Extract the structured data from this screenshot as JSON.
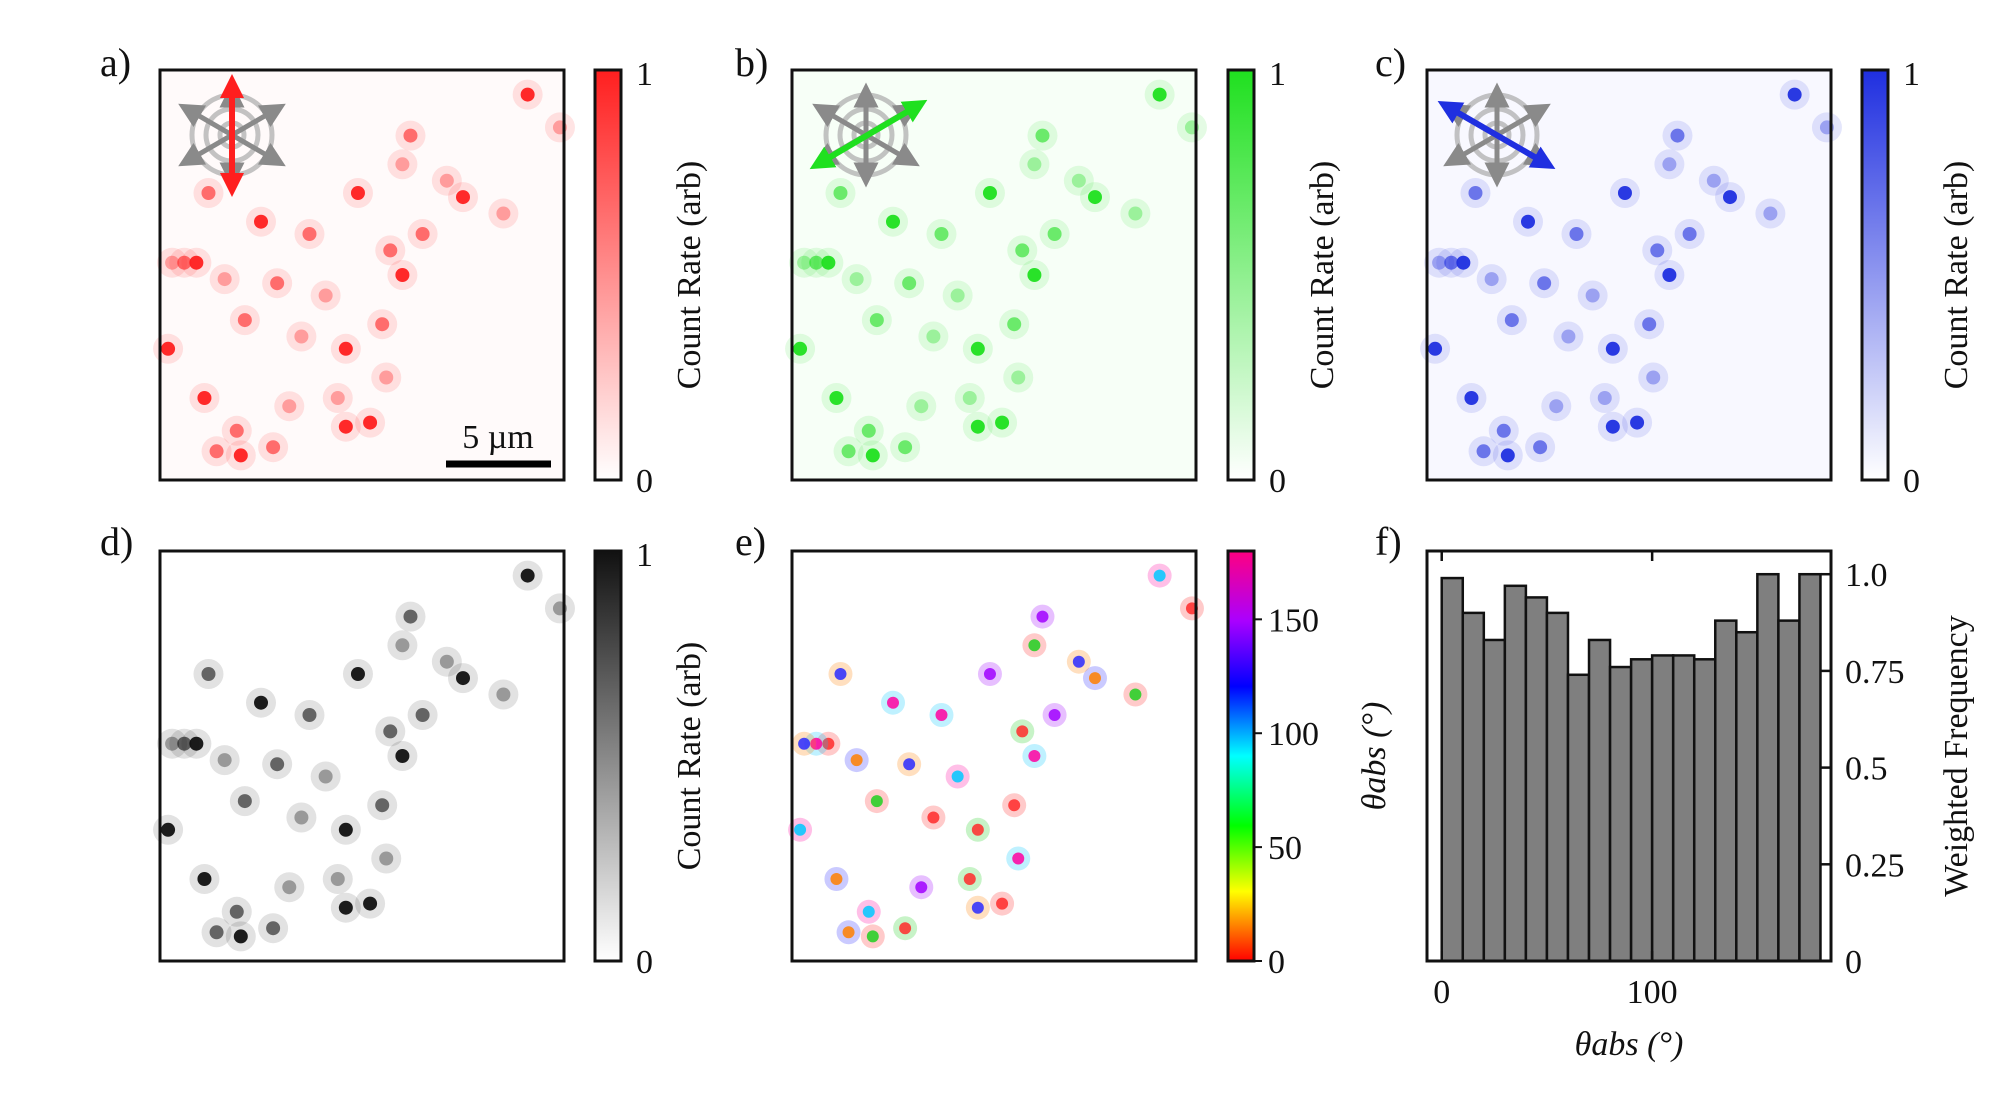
{
  "figure": {
    "panel_labels": [
      "a)",
      "b)",
      "c)",
      "d)",
      "e)",
      "f)"
    ],
    "scalebar_label": "5 µm",
    "colors": {
      "red": "#ff1f1f",
      "green": "#1fe01f",
      "blue": "#1f2fe0",
      "gray": "#111111",
      "hist_fill": "#7f7f7f",
      "compass_gray": "#8a8a8a"
    },
    "colorbar_label": "Count Rate (arb)",
    "colorbar_ticks": [
      "0",
      "1"
    ],
    "hue_colorbar_label": "θabs (°)",
    "hue_colorbar_ticks": [
      "0",
      "50",
      "100",
      "150"
    ],
    "polarization_arrows": {
      "a": "vertical-red-arrow",
      "b": "diagonal-green-arrow",
      "c": "diagonal-blue-arrow"
    }
  },
  "chart_data": [
    {
      "panel": "a",
      "type": "heatmap",
      "title": "",
      "colorbar_label": "Count Rate (arb)",
      "colorbar_range": [
        0,
        1
      ],
      "color": "#ff1f1f"
    },
    {
      "panel": "b",
      "type": "heatmap",
      "title": "",
      "colorbar_label": "Count Rate (arb)",
      "colorbar_range": [
        0,
        1
      ],
      "color": "#1fe01f"
    },
    {
      "panel": "c",
      "type": "heatmap",
      "title": "",
      "colorbar_label": "Count Rate (arb)",
      "colorbar_range": [
        0,
        1
      ],
      "color": "#1f2fe0"
    },
    {
      "panel": "d",
      "type": "heatmap",
      "title": "",
      "colorbar_label": "Count Rate (arb)",
      "colorbar_range": [
        0,
        1
      ],
      "color": "#111111"
    },
    {
      "panel": "e",
      "type": "heatmap",
      "title": "",
      "colorbar_label": "θabs (°)",
      "colorbar_range": [
        0,
        180
      ]
    },
    {
      "panel": "f",
      "type": "bar",
      "xlabel": "θabs (°)",
      "ylabel": "Weighted Frequency",
      "x": [
        0,
        10,
        20,
        30,
        40,
        50,
        60,
        70,
        80,
        90,
        100,
        110,
        120,
        130,
        140,
        150,
        160,
        170
      ],
      "values": [
        0.99,
        0.9,
        0.83,
        0.97,
        0.94,
        0.9,
        0.74,
        0.83,
        0.76,
        0.78,
        0.79,
        0.79,
        0.78,
        0.88,
        0.85,
        1.0,
        0.88,
        1.0
      ],
      "xlim": [
        -7,
        185
      ],
      "ylim": [
        0,
        1.06
      ],
      "xticks": [
        0,
        100
      ],
      "yticks": [
        "0",
        "0.25",
        "0.5",
        "0.75",
        "1.0"
      ]
    }
  ]
}
